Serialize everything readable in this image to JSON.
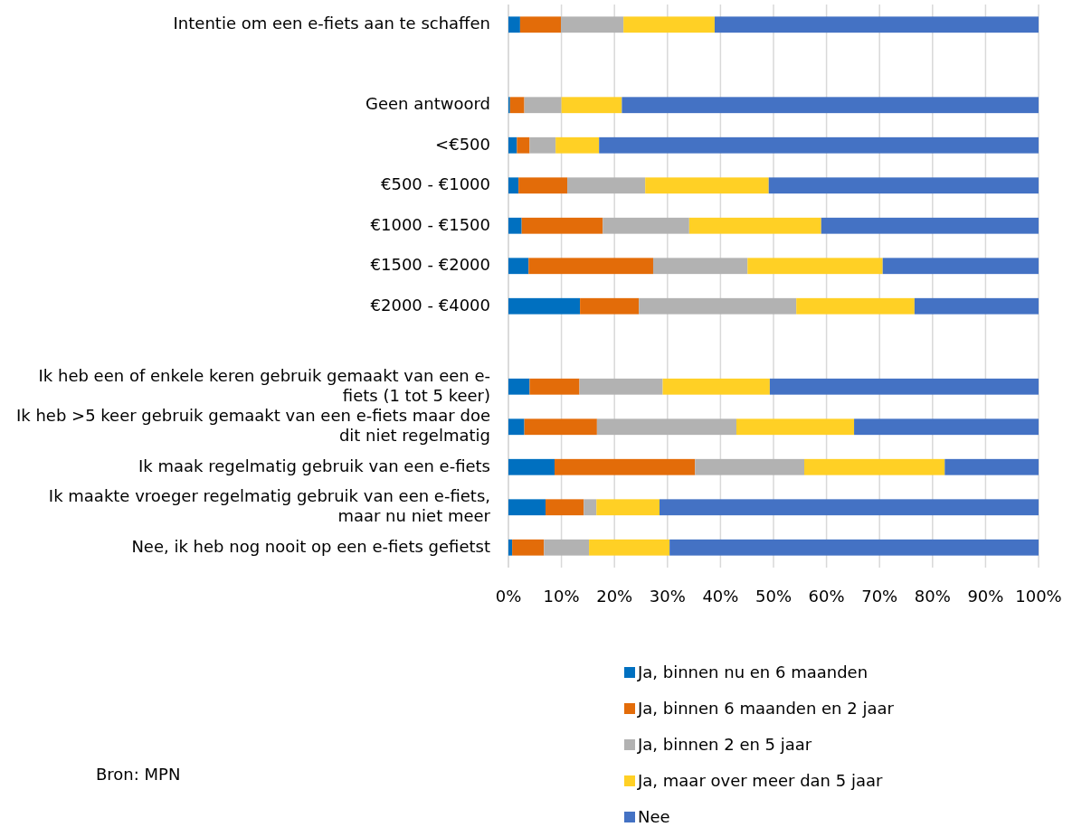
{
  "chart_data": {
    "type": "bar",
    "orientation": "horizontal",
    "stacked": true,
    "categories": [
      "Intentie om een e-fiets aan te schaffen",
      null,
      "Geen antwoord",
      "<€500",
      "€500 - €1000",
      "€1000 - €1500",
      "€1500 - €2000",
      "€2000 - €4000",
      null,
      "Ik heb een of enkele keren gebruik gemaakt van een e-fiets (1 tot 5 keer)",
      "Ik heb >5 keer gebruik gemaakt van een e-fiets maar doe dit niet regelmatig",
      "Ik maak regelmatig gebruik van een e-fiets",
      "Ik maakte vroeger regelmatig gebruik van een e-fiets, maar nu niet meer",
      "Nee, ik heb nog nooit op een e-fiets gefietst"
    ],
    "series": [
      {
        "name": "Ja, binnen nu en 6 maanden",
        "color": "#0070c0",
        "values": [
          2.2,
          null,
          0.3,
          1.6,
          1.9,
          2.5,
          3.8,
          13.5,
          null,
          4.0,
          3.0,
          8.7,
          7.0,
          0.7
        ]
      },
      {
        "name": "Ja, binnen 6 maanden en 2 jaar",
        "color": "#e36c09",
        "values": [
          7.7,
          null,
          2.7,
          2.4,
          9.2,
          15.3,
          23.5,
          11.1,
          null,
          9.4,
          13.7,
          26.5,
          7.2,
          6.0
        ]
      },
      {
        "name": "Ja, binnen 2 en 5 jaar",
        "color": "#b2b2b2",
        "values": [
          11.8,
          null,
          7.0,
          4.9,
          14.7,
          16.3,
          17.8,
          29.7,
          null,
          15.7,
          26.3,
          20.6,
          2.4,
          8.5
        ]
      },
      {
        "name": "Ja, maar over meer dan 5 jaar",
        "color": "#ffd025",
        "values": [
          17.2,
          null,
          11.4,
          8.2,
          23.3,
          24.9,
          25.5,
          22.3,
          null,
          20.2,
          22.2,
          26.5,
          11.9,
          15.2
        ]
      },
      {
        "name": "Nee",
        "color": "#4472c4",
        "values": [
          61.1,
          null,
          78.6,
          82.9,
          50.9,
          41.0,
          29.4,
          23.4,
          null,
          50.7,
          34.8,
          17.7,
          71.5,
          69.6
        ]
      }
    ],
    "xlim": [
      0,
      100
    ],
    "xticks": [
      {
        "value": 0,
        "label": "0%"
      },
      {
        "value": 10,
        "label": "10%"
      },
      {
        "value": 20,
        "label": "20%"
      },
      {
        "value": 30,
        "label": "30%"
      },
      {
        "value": 40,
        "label": "40%"
      },
      {
        "value": 50,
        "label": "50%"
      },
      {
        "value": 60,
        "label": "60%"
      },
      {
        "value": 70,
        "label": "70%"
      },
      {
        "value": 80,
        "label": "80%"
      },
      {
        "value": 90,
        "label": "90%"
      },
      {
        "value": 100,
        "label": "100%"
      }
    ],
    "grid": "x",
    "legend": "bottom",
    "annotations": [
      "Bron: MPN"
    ]
  }
}
